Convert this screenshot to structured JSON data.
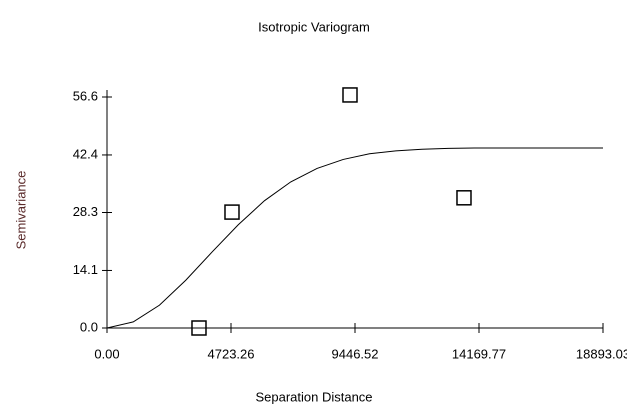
{
  "chart_data": {
    "type": "scatter",
    "title": "Isotropic Variogram",
    "x_label": "Separation Distance",
    "y_label": "Semivariance",
    "xlim": [
      0,
      18893.03
    ],
    "ylim": [
      0,
      56.6
    ],
    "xticks": [
      {
        "value": 0,
        "label": "0.00"
      },
      4723.26,
      9446.52,
      14169.77,
      18893.03
    ],
    "yticks": [
      {
        "value": 0,
        "label": "0.0"
      },
      14.1,
      28.3,
      42.4,
      56.6
    ],
    "points": {
      "x": [
        3504,
        4761,
        9256,
        13598
      ],
      "y": [
        0,
        28.4,
        57.1,
        31.9
      ],
      "color": "#000000"
    },
    "model": {
      "x": [
        0,
        1000,
        2000,
        3000,
        4000,
        5000,
        6000,
        7000,
        8000,
        9000,
        10000,
        11000,
        12000,
        13000,
        14000,
        15000,
        16000,
        17000,
        18000,
        18893.03
      ],
      "y": [
        0,
        1.5,
        5.6,
        11.7,
        18.6,
        25.3,
        31.2,
        35.8,
        39.1,
        41.3,
        42.7,
        43.4,
        43.8,
        44.0,
        44.1,
        44.1,
        44.1,
        44.1,
        44.1,
        44.1
      ],
      "color": "#000000"
    }
  }
}
